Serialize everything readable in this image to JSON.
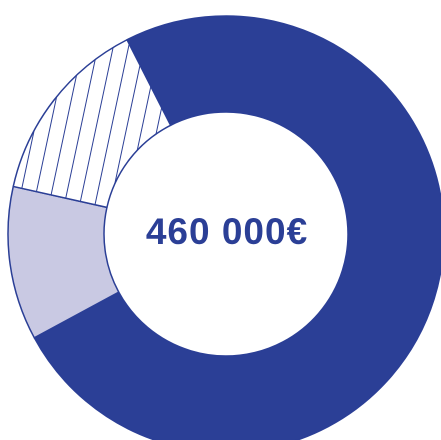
{
  "chart_data": {
    "type": "pie",
    "variant": "donut",
    "center_label": "460 000€",
    "colors": {
      "primary": "#2b3f96",
      "light": "#c9c9e3",
      "hatch_fill": "#ffffff",
      "background": "#ffffff"
    },
    "slices": [
      {
        "value": 0.746,
        "color": "#2b3f96",
        "pattern": "solid"
      },
      {
        "value": 0.114,
        "color": "#c9c9e3",
        "pattern": "solid"
      },
      {
        "value": 0.14,
        "color": "#ffffff",
        "pattern": "hatch"
      }
    ],
    "start_angle_deg": 243
  }
}
